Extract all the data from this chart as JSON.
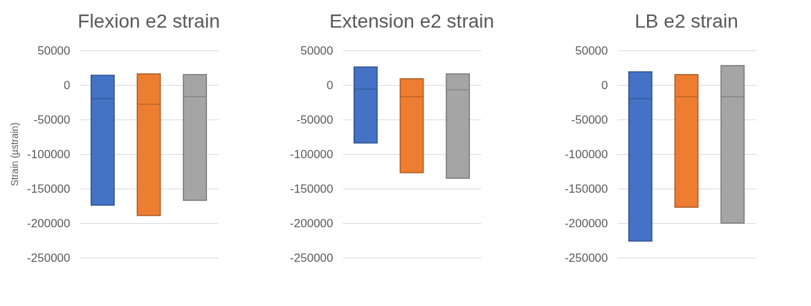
{
  "chart_data": [
    {
      "type": "box",
      "title": "Flexion e2 strain",
      "ylabel": "Strain (µstrain)",
      "categories": [
        null,
        null,
        null
      ],
      "colors": [
        "#4472c4",
        "#ed7d31",
        "#a5a5a5"
      ],
      "boxes": [
        {
          "low": -174000,
          "q1": -174000,
          "median": -20000,
          "q3": 14000,
          "high": 14000
        },
        {
          "low": -189000,
          "q1": -189000,
          "median": -28000,
          "q3": 16000,
          "high": 16000
        },
        {
          "low": -167000,
          "q1": -167000,
          "median": -17000,
          "q3": 15000,
          "high": 15000
        }
      ],
      "ylim": [
        -250000,
        50000
      ],
      "yticks": [
        -250000,
        -200000,
        -150000,
        -100000,
        -50000,
        0,
        50000
      ],
      "grid": "y"
    },
    {
      "type": "box",
      "title": "Extension e2 strain",
      "categories": [
        null,
        null,
        null
      ],
      "colors": [
        "#4472c4",
        "#ed7d31",
        "#a5a5a5"
      ],
      "boxes": [
        {
          "low": -84000,
          "q1": -84000,
          "median": -6000,
          "q3": 26000,
          "high": 26000
        },
        {
          "low": -127000,
          "q1": -127000,
          "median": -17000,
          "q3": 9000,
          "high": 9000
        },
        {
          "low": -135000,
          "q1": -135000,
          "median": -7000,
          "q3": 16000,
          "high": 16000
        }
      ],
      "ylim": [
        -250000,
        50000
      ],
      "yticks": [
        -250000,
        -200000,
        -150000,
        -100000,
        -50000,
        0,
        50000
      ],
      "grid": "y"
    },
    {
      "type": "box",
      "title": "LB e2 strain",
      "categories": [
        null,
        null,
        null
      ],
      "colors": [
        "#4472c4",
        "#ed7d31",
        "#a5a5a5"
      ],
      "boxes": [
        {
          "low": -226000,
          "q1": -226000,
          "median": -20000,
          "q3": 19000,
          "high": 19000
        },
        {
          "low": -177000,
          "q1": -177000,
          "median": -17000,
          "q3": 15000,
          "high": 15000
        },
        {
          "low": -200000,
          "q1": -200000,
          "median": -17000,
          "q3": 28000,
          "high": 28000
        }
      ],
      "ylim": [
        -250000,
        50000
      ],
      "yticks": [
        -250000,
        -200000,
        -150000,
        -100000,
        -50000,
        0,
        50000
      ],
      "grid": "y"
    }
  ]
}
